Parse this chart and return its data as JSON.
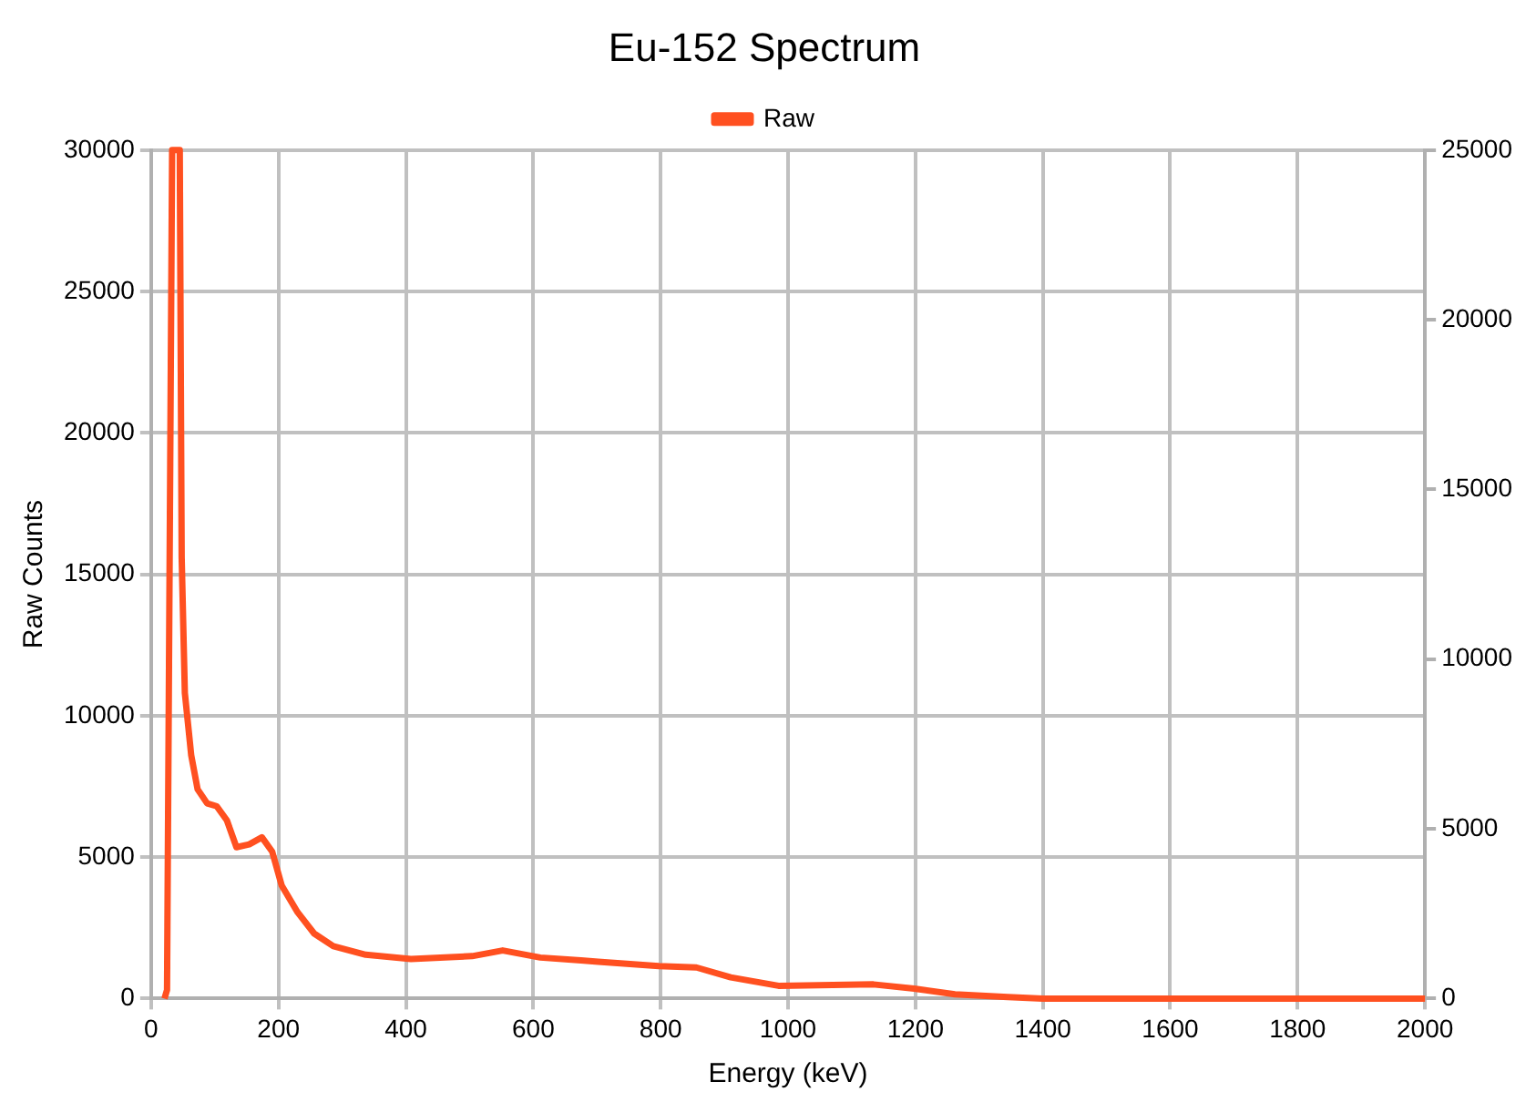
{
  "chart_data": {
    "type": "line",
    "title": "Eu-152 Spectrum",
    "xlabel": "Energy (keV)",
    "ylabel": "Raw Counts",
    "legend": "top",
    "grid": true,
    "marker": "none",
    "line_style": "solid",
    "xlim": [
      0,
      2000
    ],
    "xticks": [
      0,
      200,
      400,
      600,
      800,
      1000,
      1200,
      1400,
      1600,
      1800,
      2000
    ],
    "ylim": [
      0,
      30000
    ],
    "yticks": [
      0,
      5000,
      10000,
      15000,
      20000,
      25000,
      30000
    ],
    "y2lim": [
      0,
      25000
    ],
    "y2ticks": [
      0,
      5000,
      10000,
      15000,
      20000,
      25000
    ],
    "series": [
      {
        "name": "Raw",
        "color": "#ff5020",
        "x": [
          21,
          25,
          33,
          45,
          48,
          53,
          63,
          73,
          88,
          103,
          119,
          134,
          154,
          174,
          190,
          205,
          230,
          256,
          286,
          337,
          408,
          504,
          552,
          611,
          675,
          702,
          797,
          856,
          910,
          985,
          1134,
          1198,
          1262,
          1345,
          1400,
          1600,
          1800,
          2000
        ],
        "values": [
          0,
          300,
          30000,
          30000,
          15600,
          10800,
          8600,
          7400,
          6900,
          6800,
          6300,
          5350,
          5450,
          5700,
          5200,
          4000,
          3050,
          2300,
          1850,
          1550,
          1400,
          1500,
          1700,
          1450,
          1350,
          1300,
          1150,
          1100,
          750,
          450,
          500,
          350,
          150,
          50,
          0,
          0,
          0,
          0
        ]
      }
    ]
  }
}
